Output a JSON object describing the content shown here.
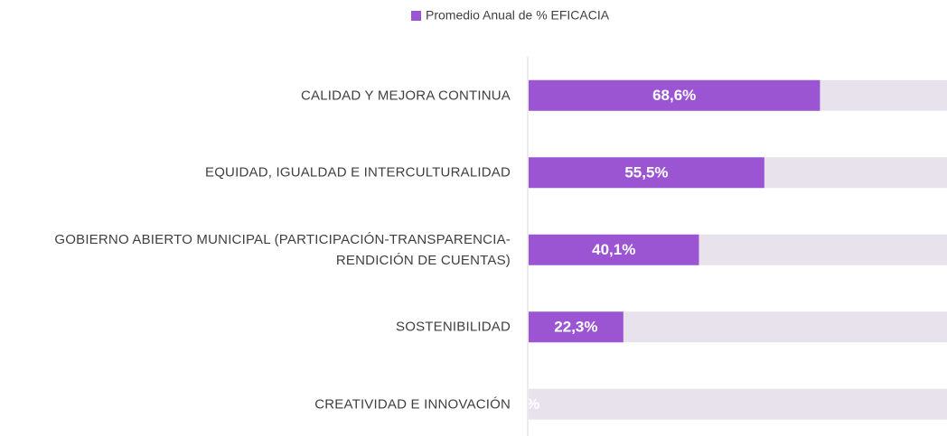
{
  "chart_data": {
    "type": "bar",
    "orientation": "horizontal",
    "categories": [
      "CALIDAD Y MEJORA CONTINUA",
      "EQUIDAD, IGUALDAD E INTERCULTURALIDAD",
      "GOBIERNO ABIERTO MUNICIPAL (PARTICIPACIÓN-TRANSPARENCIA-RENDICIÓN DE CUENTAS)",
      "SOSTENIBILIDAD",
      "CREATIVIDAD E INNOVACIÓN"
    ],
    "series": [
      {
        "name": "Promedio Anual de % EFICACIA",
        "color": "#9b55d3",
        "values": [
          68.6,
          55.5,
          40.1,
          22.3,
          0
        ],
        "value_labels": [
          "68,6%",
          "55,5%",
          "40,1%",
          "22,3%",
          "0%"
        ]
      }
    ],
    "xlim": [
      0,
      100
    ],
    "legend": "top"
  }
}
